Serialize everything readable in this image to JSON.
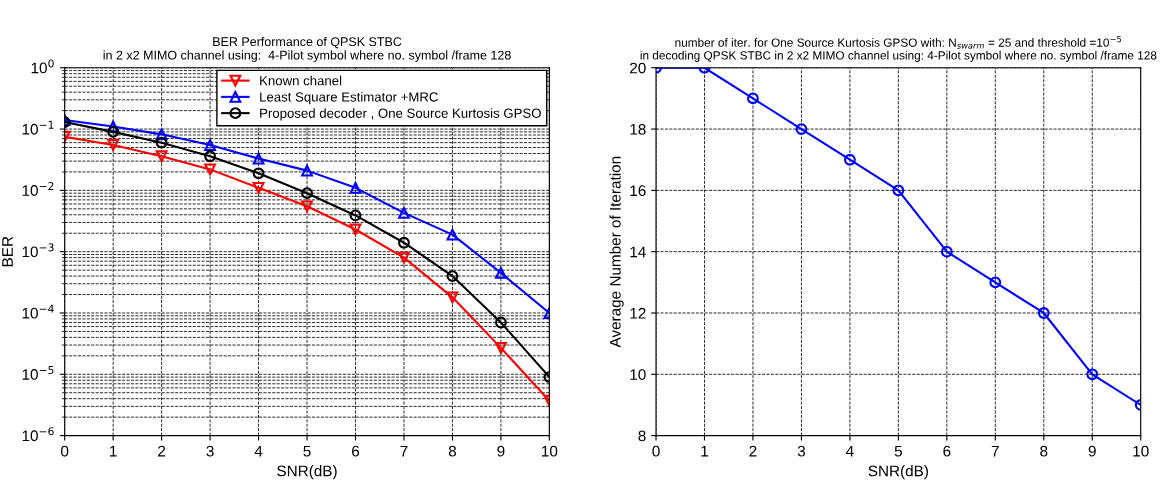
{
  "chart_data": [
    {
      "type": "line",
      "title": "BER Performance of QPSK STBC\nin 2 x2 MIMO channel using:  4-Pilot symbol where no. symbol /frame 128",
      "xlabel": "SNR(dB)",
      "ylabel": "BER",
      "log": "y",
      "grid": true,
      "legend": "top right",
      "x": [
        0,
        1,
        2,
        3,
        4,
        5,
        6,
        7,
        8,
        9,
        10
      ],
      "xlim": [
        0,
        10
      ],
      "xticks": [
        0,
        1,
        2,
        3,
        4,
        5,
        6,
        7,
        8,
        9,
        10
      ],
      "ylim": [
        1e-06,
        1
      ],
      "yticks": [
        {
          "value": 1e-06,
          "label": "10$^{−6}$"
        },
        {
          "value": 1e-05,
          "label": "10$^{−5}$"
        },
        {
          "value": 0.0001,
          "label": "10$^{−4}$"
        },
        {
          "value": 0.001,
          "label": "10$^{−3}$"
        },
        {
          "value": 0.01,
          "label": "10$^{−2}$"
        },
        {
          "value": 0.1,
          "label": "10$^{−1}$"
        },
        {
          "value": 1,
          "label": "10$^{0}$"
        }
      ],
      "series": [
        {
          "name": "Known chanel",
          "color": "#ff0000",
          "marker": "triangle_down",
          "values": [
            0.075,
            0.055,
            0.036,
            0.022,
            0.011,
            0.0055,
            0.0023,
            0.0008,
            0.00018,
            2.7e-05,
            3.7e-06
          ]
        },
        {
          "name": "Least Square Estimator +MRC",
          "color": "#0000ff",
          "marker": "triangle",
          "values": [
            0.14,
            0.11,
            0.082,
            0.055,
            0.033,
            0.021,
            0.011,
            0.0043,
            0.0019,
            0.00045,
            0.0001
          ]
        },
        {
          "name": "Proposed decoder , One Source Kurtosis GPSO",
          "color": "#000000",
          "marker": "circle",
          "values": [
            0.13,
            0.09,
            0.06,
            0.036,
            0.019,
            0.009,
            0.0039,
            0.0014,
            0.0004,
            7e-05,
            9e-06
          ]
        }
      ]
    },
    {
      "type": "line",
      "title": "number of iter. for One Source Kurtosis GPSO with: N$_{swarm}$ = 25 and threshold =10$^{−5}$\nin decoding QPSK STBC in 2 x2 MIMO channel using: 4-Pilot symbol where no. symbol /frame 128",
      "xlabel": "SNR(dB)",
      "ylabel": "Average Number of Iteration",
      "grid": true,
      "marker": "circle",
      "x": [
        0,
        1,
        2,
        3,
        4,
        5,
        6,
        7,
        8,
        9,
        10
      ],
      "xlim": [
        0,
        10
      ],
      "xticks": [
        0,
        1,
        2,
        3,
        4,
        5,
        6,
        7,
        8,
        9,
        10
      ],
      "ylim": [
        8,
        20
      ],
      "yticks": [
        8,
        10,
        12,
        14,
        16,
        18,
        20
      ],
      "series": [
        {
          "color": "#0000ff",
          "values": [
            20,
            20,
            19,
            18,
            17,
            16,
            14,
            13,
            12,
            10,
            9
          ]
        }
      ]
    }
  ]
}
